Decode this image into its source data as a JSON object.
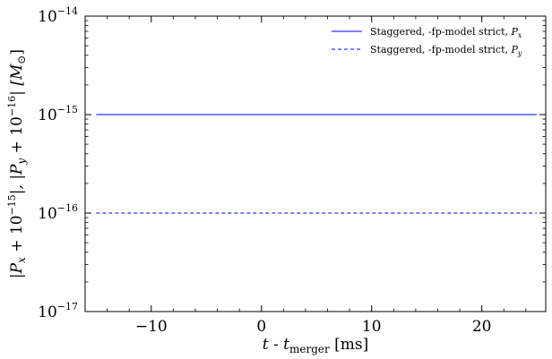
{
  "chart_data": {
    "type": "line",
    "xlabel": {
      "main": "t",
      "sep": " - ",
      "t": "t",
      "sub": "merger",
      "unit": " [ms]"
    },
    "ylabel": {
      "open": "|P",
      "sub_x": "x",
      "mid1": " + 10",
      "exp1": "−15",
      "mid2": "|, |P",
      "sub_y": "y",
      "mid3": " + 10",
      "exp2": "−16",
      "close": "| [M",
      "sun": "⊙",
      "end": "]"
    },
    "xlim": [
      -16,
      25.8
    ],
    "ylim_log10": [
      -17,
      -14
    ],
    "x_ticks": [
      -10,
      0,
      10,
      20
    ],
    "x_tick_labels": [
      "−10",
      "0",
      "10",
      "20"
    ],
    "y_ticks": [
      {
        "value_log10": -14,
        "base": "10",
        "exp": "−14"
      },
      {
        "value_log10": -15,
        "base": "10",
        "exp": "−15"
      },
      {
        "value_log10": -16,
        "base": "10",
        "exp": "−16"
      },
      {
        "value_log10": -17,
        "base": "10",
        "exp": "−17"
      }
    ],
    "y_scale": "log",
    "grid": false,
    "legend_position": "top-right",
    "series": [
      {
        "name_prefix": "Staggered, -fp-model strict, ",
        "name_var": "P",
        "name_sub": "x",
        "style": "solid",
        "color": "#3333ff",
        "x": [
          -15,
          25
        ],
        "y": [
          1e-15,
          1e-15
        ]
      },
      {
        "name_prefix": "Staggered, -fp-model strict, ",
        "name_var": "P",
        "name_sub": "y",
        "style": "dashed",
        "color": "#3333ff",
        "x": [
          -15,
          25
        ],
        "y": [
          1e-16,
          1e-16
        ]
      }
    ]
  }
}
